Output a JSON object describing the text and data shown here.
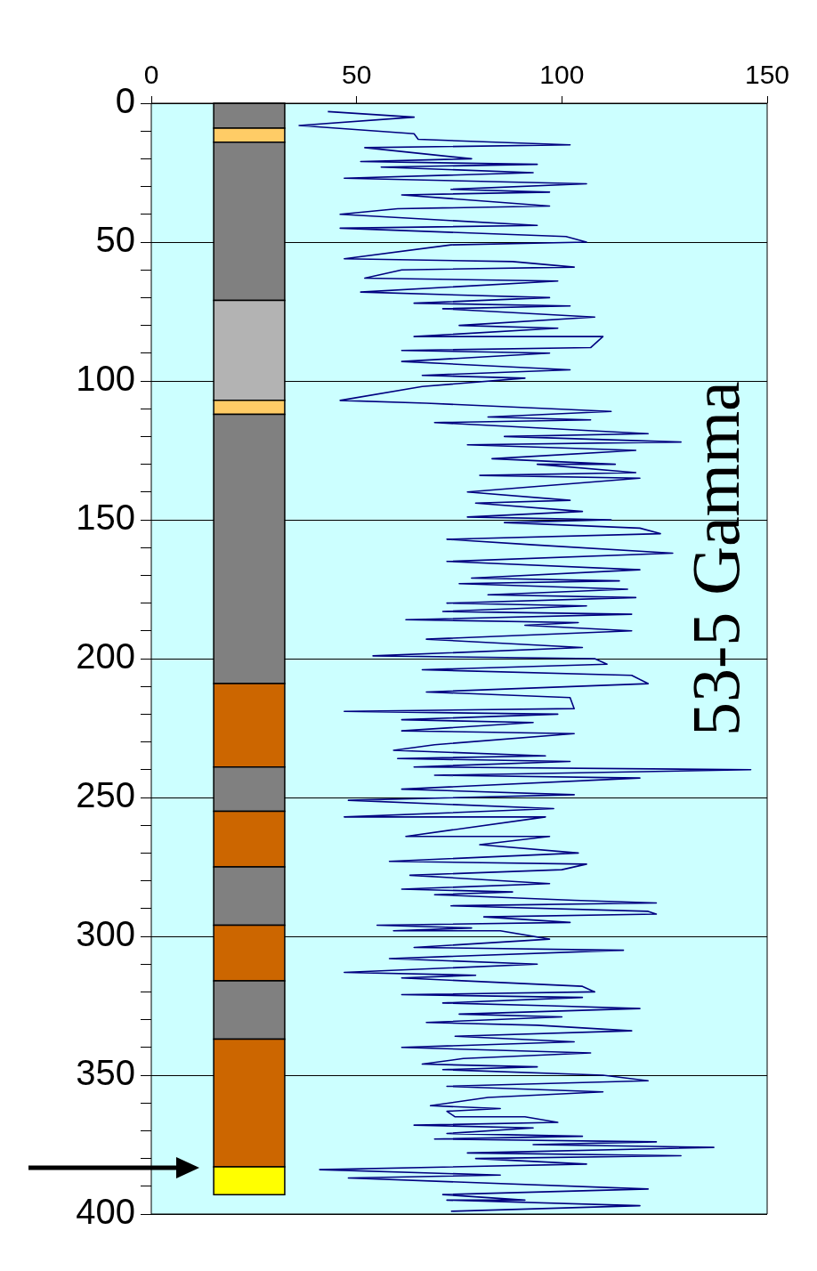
{
  "chart_data": {
    "type": "line",
    "title": "53-5 Gamma",
    "xlim": [
      0,
      150
    ],
    "xticks": [
      0,
      50,
      100,
      150
    ],
    "ylim": [
      400,
      0
    ],
    "yticks": [
      0,
      {
        "value": 10,
        "label": null
      },
      {
        "value": 20,
        "label": null
      },
      {
        "value": 30,
        "label": null
      },
      {
        "value": 40,
        "label": null
      },
      50,
      {
        "value": 60,
        "label": null
      },
      {
        "value": 70,
        "label": null
      },
      {
        "value": 80,
        "label": null
      },
      {
        "value": 90,
        "label": null
      },
      100,
      {
        "value": 110,
        "label": null
      },
      {
        "value": 120,
        "label": null
      },
      {
        "value": 130,
        "label": null
      },
      {
        "value": 140,
        "label": null
      },
      150,
      {
        "value": 160,
        "label": null
      },
      {
        "value": 170,
        "label": null
      },
      {
        "value": 180,
        "label": null
      },
      {
        "value": 190,
        "label": null
      },
      200,
      {
        "value": 210,
        "label": null
      },
      {
        "value": 220,
        "label": null
      },
      {
        "value": 230,
        "label": null
      },
      {
        "value": 240,
        "label": null
      },
      250,
      {
        "value": 260,
        "label": null
      },
      {
        "value": 270,
        "label": null
      },
      {
        "value": 280,
        "label": null
      },
      {
        "value": 290,
        "label": null
      },
      300,
      {
        "value": 310,
        "label": null
      },
      {
        "value": 320,
        "label": null
      },
      {
        "value": 330,
        "label": null
      },
      {
        "value": 340,
        "label": null
      },
      350,
      {
        "value": 360,
        "label": null
      },
      {
        "value": 370,
        "label": null
      },
      {
        "value": 380,
        "label": null
      },
      {
        "value": 390,
        "label": null
      },
      400
    ],
    "grid": "y",
    "marker": "none",
    "line_style": "solid",
    "bands": [
      {
        "axis": "y",
        "from": 0,
        "to": 9,
        "color": "#808080"
      },
      {
        "axis": "y",
        "from": 9,
        "to": 14,
        "color": "#ffcc66"
      },
      {
        "axis": "y",
        "from": 14,
        "to": 71,
        "color": "#808080"
      },
      {
        "axis": "y",
        "from": 71,
        "to": 107,
        "color": "#b3b3b3"
      },
      {
        "axis": "y",
        "from": 107,
        "to": 112,
        "color": "#ffcc66"
      },
      {
        "axis": "y",
        "from": 112,
        "to": 209,
        "color": "#808080"
      },
      {
        "axis": "y",
        "from": 209,
        "to": 239,
        "color": "#cc6600"
      },
      {
        "axis": "y",
        "from": 239,
        "to": 255,
        "color": "#808080"
      },
      {
        "axis": "y",
        "from": 255,
        "to": 275,
        "color": "#cc6600"
      },
      {
        "axis": "y",
        "from": 275,
        "to": 296,
        "color": "#808080"
      },
      {
        "axis": "y",
        "from": 296,
        "to": 316,
        "color": "#cc6600"
      },
      {
        "axis": "y",
        "from": 316,
        "to": 337,
        "color": "#808080"
      },
      {
        "axis": "y",
        "from": 337,
        "to": 383,
        "color": "#cc6600"
      },
      {
        "axis": "y",
        "from": 383,
        "to": 393,
        "color": "#ffff00"
      }
    ],
    "series": [
      {
        "color": "#000080",
        "x": [
          43,
          64,
          36,
          64,
          65,
          102,
          52,
          78,
          51,
          94,
          56,
          93,
          47,
          106,
          73,
          97,
          61,
          97,
          60,
          46,
          94,
          46,
          101,
          106,
          73,
          47,
          88,
          103,
          61,
          52,
          99,
          51,
          97,
          64,
          102,
          71,
          108,
          75,
          99,
          64,
          110,
          107,
          61,
          97,
          61,
          102,
          66,
          91,
          66,
          46,
          67,
          112,
          82,
          107,
          69,
          121,
          86,
          129,
          77,
          118,
          83,
          113,
          94,
          118,
          80,
          119,
          77,
          102,
          79,
          105,
          77,
          112,
          86,
          119,
          124,
          72,
          93,
          127,
          72,
          119,
          78,
          114,
          75,
          116,
          82,
          118,
          72,
          106,
          71,
          117,
          62,
          104,
          91,
          117,
          67,
          105,
          54,
          108,
          111,
          66,
          117,
          121,
          67,
          102,
          103,
          47,
          99,
          61,
          93,
          61,
          103,
          69,
          59,
          96,
          60,
          102,
          64,
          146,
          69,
          119,
          61,
          103,
          48,
          98,
          47,
          96,
          62,
          97,
          80,
          104,
          58,
          106,
          100,
          63,
          97,
          61,
          88,
          69,
          103,
          123,
          73,
          121,
          123,
          81,
          102,
          55,
          78,
          59,
          85,
          97,
          64,
          115,
          58,
          94,
          47,
          79,
          61,
          105,
          108,
          61,
          105,
          71,
          97,
          119,
          75,
          100,
          67,
          94,
          117,
          74,
          103,
          61,
          107,
          76,
          66,
          94,
          71,
          110,
          121,
          72,
          110,
          82,
          68,
          85,
          72,
          74,
          91,
          99,
          64,
          93,
          72,
          105,
          69,
          123,
          93,
          137,
          77,
          129,
          79,
          106,
          41,
          85,
          48,
          121,
          71,
          91,
          72,
          119,
          73
        ],
        "values": [
          3,
          5,
          8,
          11,
          13,
          15,
          16,
          20,
          21,
          22,
          23,
          25,
          27,
          29,
          31,
          32,
          33,
          37,
          38,
          40,
          44,
          45,
          48,
          50,
          51,
          56,
          57,
          59,
          60,
          63,
          64,
          68,
          70,
          72,
          73,
          74,
          77,
          80,
          81,
          84,
          84,
          88,
          89,
          90,
          93,
          96,
          98,
          99,
          102,
          107,
          108,
          111,
          113,
          114,
          115,
          119,
          120,
          122,
          123,
          125,
          128,
          130,
          130,
          133,
          134,
          135,
          140,
          143,
          144,
          147,
          149,
          150,
          151,
          153,
          155,
          157,
          159,
          162,
          165,
          168,
          171,
          172,
          173,
          175,
          177,
          178,
          180,
          181,
          183,
          184,
          186,
          187,
          188,
          190,
          193,
          196,
          199,
          200,
          202,
          204,
          206,
          209,
          212,
          214,
          218,
          219,
          220,
          222,
          223,
          226,
          227,
          231,
          233,
          235,
          236,
          237,
          239,
          240,
          242,
          243,
          247,
          249,
          251,
          254,
          257,
          257,
          264,
          264,
          267,
          270,
          273,
          274,
          276,
          278,
          281,
          283,
          284,
          285,
          287,
          288,
          289,
          291,
          292,
          293,
          295,
          296,
          297,
          298,
          298,
          301,
          304,
          305,
          308,
          310,
          313,
          314,
          315,
          318,
          320,
          321,
          322,
          324,
          325,
          326,
          328,
          329,
          331,
          332,
          334,
          336,
          338,
          340,
          342,
          344,
          346,
          347,
          348,
          350,
          352,
          354,
          356,
          358,
          361,
          362,
          363,
          365,
          365,
          367,
          368,
          369,
          371,
          372,
          373,
          374,
          375,
          376,
          378,
          379,
          380,
          382,
          384,
          386,
          387,
          391,
          393,
          395,
          395,
          397,
          399
        ]
      }
    ]
  }
}
